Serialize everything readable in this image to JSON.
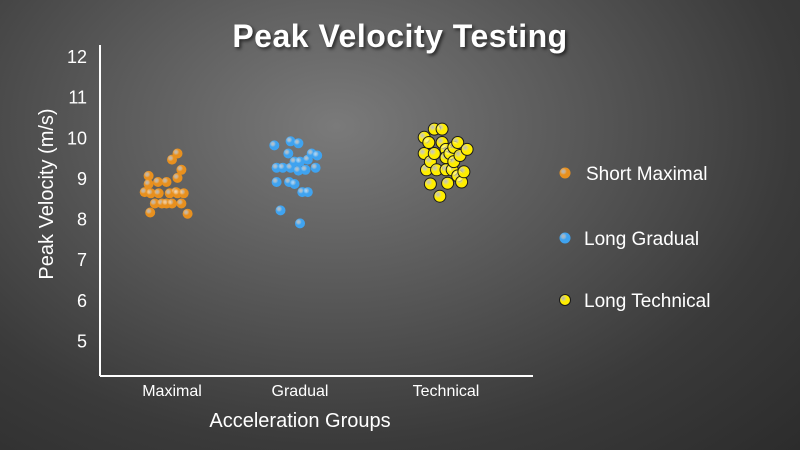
{
  "chart_data": {
    "type": "scatter",
    "title": "Peak Velocity Testing",
    "xlabel": "Acceleration Groups",
    "ylabel": "Peak Velocity (m/s)",
    "categories": [
      "Maximal",
      "Gradual",
      "Technical"
    ],
    "yticks": [
      "5",
      "6",
      "7",
      "8",
      "9",
      "10",
      "11",
      "12"
    ],
    "ylim": [
      4.5,
      12.5
    ],
    "grid": false,
    "legend_position": "right",
    "series": [
      {
        "name": "Short Maximal",
        "category": "Maximal",
        "color": "#e8901e",
        "points": [
          [
            -0.35,
            8.65
          ],
          [
            -0.3,
            9.05
          ],
          [
            -0.3,
            8.85
          ],
          [
            -0.28,
            8.15
          ],
          [
            -0.27,
            8.62
          ],
          [
            -0.22,
            8.37
          ],
          [
            -0.18,
            8.9
          ],
          [
            -0.17,
            8.62
          ],
          [
            -0.13,
            8.37
          ],
          [
            -0.07,
            8.9
          ],
          [
            -0.07,
            8.37
          ],
          [
            -0.03,
            8.62
          ],
          [
            0.0,
            9.45
          ],
          [
            0.0,
            8.37
          ],
          [
            0.05,
            8.65
          ],
          [
            0.07,
            9.0
          ],
          [
            0.07,
            9.6
          ],
          [
            0.07,
            8.62
          ],
          [
            0.12,
            8.37
          ],
          [
            0.12,
            9.2
          ],
          [
            0.15,
            8.62
          ],
          [
            0.2,
            8.12
          ]
        ]
      },
      {
        "name": "Long Gradual",
        "category": "Gradual",
        "color": "#3fa3f0",
        "points": [
          [
            -0.33,
            9.8
          ],
          [
            -0.3,
            9.25
          ],
          [
            -0.3,
            8.9
          ],
          [
            -0.25,
            8.2
          ],
          [
            -0.22,
            9.25
          ],
          [
            -0.15,
            9.6
          ],
          [
            -0.14,
            8.9
          ],
          [
            -0.12,
            9.9
          ],
          [
            -0.12,
            9.25
          ],
          [
            -0.07,
            9.4
          ],
          [
            -0.07,
            8.85
          ],
          [
            -0.02,
            9.85
          ],
          [
            -0.02,
            9.18
          ],
          [
            0.0,
            9.4
          ],
          [
            0.0,
            7.88
          ],
          [
            0.03,
            8.65
          ],
          [
            0.07,
            9.2
          ],
          [
            0.1,
            9.45
          ],
          [
            0.1,
            8.65
          ],
          [
            0.15,
            9.6
          ],
          [
            0.2,
            9.25
          ],
          [
            0.22,
            9.55
          ]
        ]
      },
      {
        "name": "Long Technical",
        "category": "Technical",
        "color": "#ffee00",
        "points": [
          [
            -0.28,
            10.0
          ],
          [
            -0.28,
            9.6
          ],
          [
            -0.25,
            9.2
          ],
          [
            -0.22,
            9.87
          ],
          [
            -0.2,
            8.85
          ],
          [
            -0.2,
            9.4
          ],
          [
            -0.15,
            10.2
          ],
          [
            -0.15,
            9.6
          ],
          [
            -0.12,
            9.2
          ],
          [
            -0.08,
            8.55
          ],
          [
            -0.05,
            10.2
          ],
          [
            -0.05,
            9.87
          ],
          [
            0.0,
            9.7
          ],
          [
            0.0,
            9.5
          ],
          [
            0.0,
            9.2
          ],
          [
            0.02,
            8.87
          ],
          [
            0.05,
            9.6
          ],
          [
            0.08,
            9.2
          ],
          [
            0.1,
            9.75
          ],
          [
            0.1,
            9.4
          ],
          [
            0.15,
            9.87
          ],
          [
            0.15,
            9.05
          ],
          [
            0.18,
            9.55
          ],
          [
            0.2,
            8.9
          ],
          [
            0.23,
            9.15
          ],
          [
            0.27,
            9.7
          ]
        ]
      }
    ]
  }
}
